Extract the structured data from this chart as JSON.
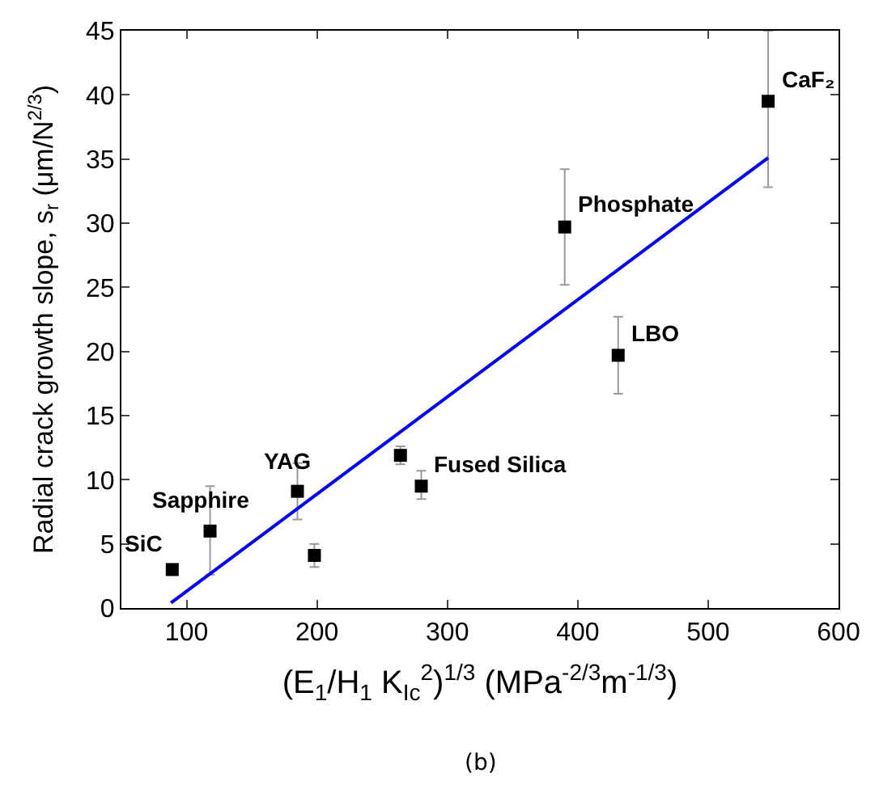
{
  "chart_data": {
    "type": "scatter",
    "xlabel": "(E$_{1}$/H$_{1}$ K$_{Ic}$$^{2}$)$^{1/3}$ (MPa$^{-2/3}$m$^{-1/3}$)",
    "ylabel": "Radial crack growth slope, s$_{r}$ (μm/N$^{2/3}$)",
    "xlim": [
      50,
      600
    ],
    "xticks": [
      100,
      200,
      300,
      400,
      500,
      600
    ],
    "ylim": [
      0,
      45
    ],
    "yticks": [
      0,
      5,
      10,
      15,
      20,
      25,
      30,
      35,
      40,
      45
    ],
    "series": [
      {
        "type": "scatter",
        "color": "#000000",
        "marker": "square",
        "x": [
          89,
          118,
          185,
          198,
          264,
          280,
          431,
          390,
          546
        ],
        "values": [
          3.0,
          6.0,
          9.1,
          4.1,
          11.9,
          9.5,
          19.7,
          29.7,
          39.5
        ],
        "errors": [
          null,
          [
            2.6,
            9.5
          ],
          [
            6.9,
            11.3
          ],
          [
            3.2,
            5.0
          ],
          [
            11.2,
            12.6
          ],
          [
            8.5,
            10.7
          ],
          [
            16.7,
            22.7
          ],
          [
            25.2,
            34.2
          ],
          [
            32.8,
            45
          ]
        ]
      },
      {
        "type": "line",
        "color": "#0000ff",
        "line_style": "solid",
        "marker": "none",
        "x": [
          88,
          546
        ],
        "values": [
          0.4,
          35.1
        ]
      }
    ],
    "annotations": [
      {
        "text": "SiC",
        "x": 89,
        "y": 3.0
      },
      {
        "text": "Sapphire",
        "x": 118,
        "y": 6.0
      },
      {
        "text": "YAG",
        "x": 185,
        "y": 9.1
      },
      {
        "text": "Fused Silica",
        "x": 280,
        "y": 9.5
      },
      {
        "text": "LBO",
        "x": 431,
        "y": 19.7
      },
      {
        "text": "Phosphate",
        "x": 390,
        "y": 29.7
      },
      {
        "text": "CaF₂",
        "x": 546,
        "y": 39.5
      },
      "(b)"
    ]
  }
}
